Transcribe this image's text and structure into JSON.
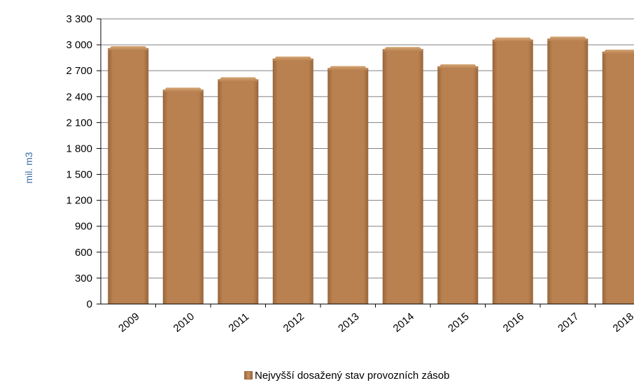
{
  "chart_data": {
    "type": "bar",
    "categories": [
      "2009",
      "2010",
      "2011",
      "2012",
      "2013",
      "2014",
      "2015",
      "2016",
      "2017",
      "2018"
    ],
    "series": [
      {
        "name": "Nejvyšší dosažený stav provozních zásob",
        "values": [
          2960,
          2480,
          2600,
          2840,
          2730,
          2950,
          2750,
          3060,
          3070,
          2920
        ]
      }
    ],
    "ylabel": "mil. m3",
    "ylim": [
      0,
      3300
    ],
    "yticks": [
      0,
      300,
      600,
      900,
      1200,
      1500,
      1800,
      2100,
      2400,
      2700,
      3000,
      3300
    ],
    "ytick_labels": [
      "0",
      "300",
      "600",
      "900",
      "1 200",
      "1 500",
      "1 800",
      "2 100",
      "2 400",
      "2 700",
      "3 000",
      "3 300"
    ],
    "grid": true,
    "legend": "bottom",
    "colors": {
      "bar_main": "#b9814f",
      "bar_dark": "#97653b",
      "bar_light": "#d6a676",
      "grid": "#808080",
      "ylabel": "#3a6ea5"
    }
  }
}
